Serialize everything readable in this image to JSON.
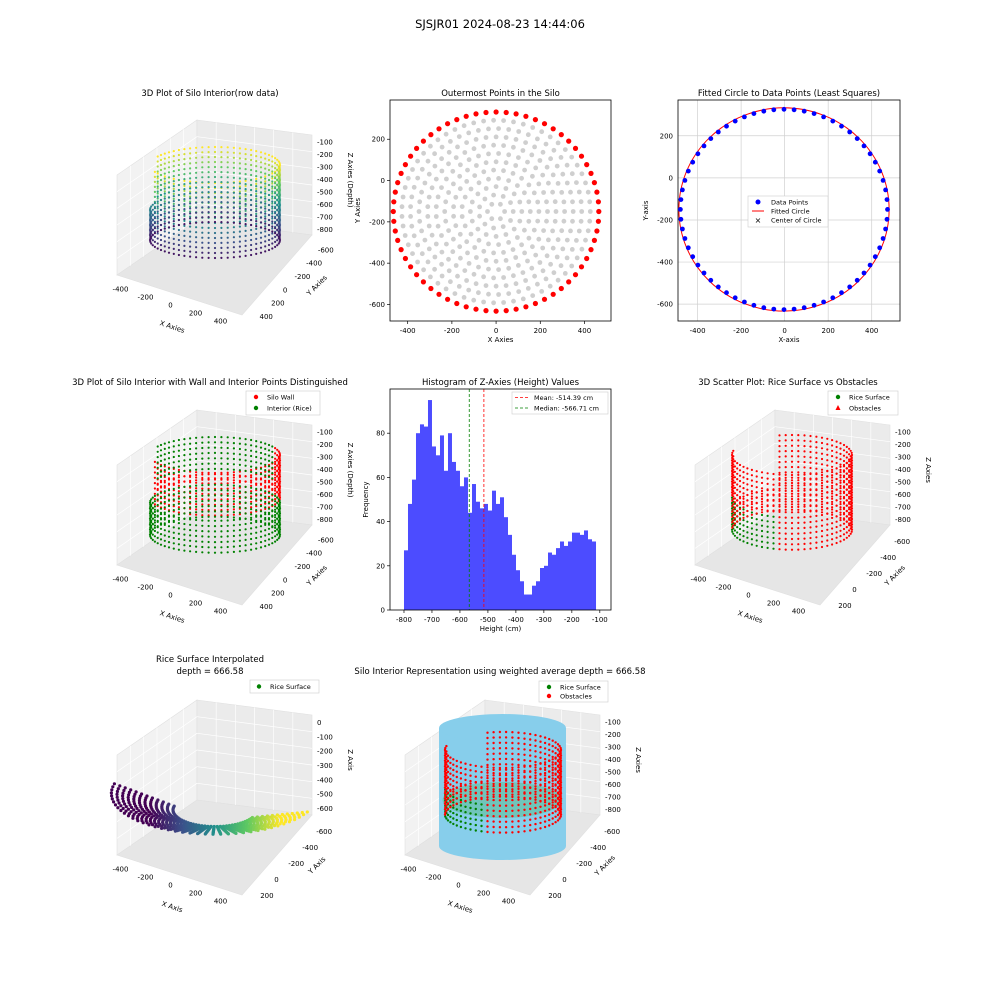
{
  "figure": {
    "suptitle": "SJSJR01 2024-08-23 14:44:06"
  },
  "colors": {
    "wall": "#ff0000",
    "rice": "#008000",
    "points": "#0000ff",
    "grey": "#cfcfcf",
    "hist": "#0000ff",
    "silo": "#87ceeb",
    "mean_line": "#ff0000",
    "median_line": "#008000"
  },
  "chart_data": [
    {
      "id": "p1",
      "type": "scatter3d",
      "title": "3D Plot of Silo Interior(row data)",
      "xlabel": "X Axies",
      "ylabel": "Y Axies",
      "zlabel": "Z Axies (Depth)",
      "x_ticks": [
        "-400",
        "-200",
        "0",
        "200",
        "400"
      ],
      "y_ticks": [
        "400",
        "200",
        "0",
        "-200",
        "-400",
        "-600"
      ],
      "z_ticks": [
        "-100",
        "-200",
        "-300",
        "-400",
        "-500",
        "-600",
        "-700",
        "-800"
      ],
      "colormap": "viridis"
    },
    {
      "id": "p2",
      "type": "scatter",
      "title": "Outermost Points in the Silo",
      "xlabel": "X Axies",
      "ylabel": "Y Axies",
      "xlim": [
        -480,
        520
      ],
      "ylim": [
        -680,
        390
      ],
      "x_ticks": [
        -400,
        -200,
        0,
        200,
        400
      ],
      "y_ticks": [
        200,
        0,
        -200,
        -400,
        -600
      ],
      "center": [
        0,
        -150
      ],
      "radius_x": 465,
      "radius_y": 482,
      "outer_points": 64
    },
    {
      "id": "p3",
      "type": "scatter",
      "title": "Fitted Circle to Data Points (Least Squares)",
      "xlabel": "X-axis",
      "ylabel": "Y-axis",
      "xlim": [
        -490,
        530
      ],
      "ylim": [
        -680,
        370
      ],
      "x_ticks": [
        -400,
        -200,
        0,
        200,
        400
      ],
      "y_ticks": [
        200,
        0,
        -200,
        -400,
        -600
      ],
      "grid": true,
      "circle_center": [
        -3,
        -150
      ],
      "circle_radius": 483,
      "legend": [
        "Data Points",
        "Fitted Circle",
        "Center of Circle"
      ]
    },
    {
      "id": "p4",
      "type": "scatter3d",
      "title": "3D Plot of Silo Interior with Wall and Interior Points Distinguished",
      "xlabel": "X Axies",
      "ylabel": "Y Axies",
      "zlabel": "Z Axies (Depth)",
      "x_ticks": [
        "-400",
        "-200",
        "0",
        "200",
        "400"
      ],
      "y_ticks": [
        "400",
        "200",
        "0",
        "-200",
        "-400",
        "-600"
      ],
      "z_ticks": [
        "-100",
        "-200",
        "-300",
        "-400",
        "-500",
        "-600",
        "-700",
        "-800"
      ],
      "legend": [
        "Silo Wall",
        "Interior (Rice)"
      ]
    },
    {
      "id": "p5",
      "type": "bar",
      "title": "Histogram of Z-Axies (Height) Values",
      "xlabel": "Height (cm)",
      "ylabel": "Frequency",
      "xlim": [
        -850,
        -60
      ],
      "ylim": [
        0,
        100
      ],
      "x_ticks": [
        -800,
        -700,
        -600,
        -500,
        -400,
        -300,
        -200,
        -100
      ],
      "y_ticks": [
        0,
        20,
        40,
        60,
        80
      ],
      "bin_start": -800,
      "bin_width": 14.3,
      "values": [
        27,
        48,
        59,
        80,
        84,
        83,
        95,
        74,
        70,
        79,
        63,
        80,
        67,
        63,
        56,
        60,
        44,
        57,
        49,
        46,
        48,
        45,
        54,
        48,
        51,
        42,
        34,
        25,
        18,
        13,
        7,
        7,
        11,
        13,
        19,
        20,
        26,
        25,
        28,
        31,
        29,
        31,
        35,
        35,
        34,
        36,
        32,
        31
      ],
      "mean": -514.39,
      "median": -566.71,
      "legend": [
        "Mean: -514.39 cm",
        "Median: -566.71 cm"
      ]
    },
    {
      "id": "p6",
      "type": "scatter3d",
      "title": "3D Scatter Plot: Rice Surface vs Obstacles",
      "xlabel": "X Axies",
      "ylabel": "Y Axies",
      "zlabel": "Z Axies",
      "x_ticks": [
        "-400",
        "-200",
        "0",
        "200",
        "400"
      ],
      "y_ticks": [
        "200",
        "0",
        "-200",
        "-400",
        "-600"
      ],
      "z_ticks": [
        "-100",
        "-200",
        "-300",
        "-400",
        "-500",
        "-600",
        "-700",
        "-800"
      ],
      "legend": [
        "Rice Surface",
        "Obstacles"
      ]
    },
    {
      "id": "p7",
      "type": "surface3d",
      "title": "Rice Surface Interpolated",
      "subtitle": "depth = 666.58",
      "xlabel": "X Axis",
      "ylabel": "Y Axis",
      "zlabel": "Z Axis",
      "x_ticks": [
        "-400",
        "-200",
        "0",
        "200",
        "400"
      ],
      "y_ticks": [
        "200",
        "0",
        "-200",
        "-400",
        "-600"
      ],
      "z_ticks": [
        "0",
        "-100",
        "-200",
        "-300",
        "-400",
        "-500",
        "-600"
      ],
      "legend": [
        "Rice Surface"
      ]
    },
    {
      "id": "p8",
      "type": "scatter3d",
      "title": "Silo Interior Representation using weighted average depth = 666.58",
      "xlabel": "X Axies",
      "ylabel": "Y Axies",
      "zlabel": "Z Axies",
      "x_ticks": [
        "-400",
        "-200",
        "0",
        "200",
        "400"
      ],
      "y_ticks": [
        "200",
        "0",
        "-200",
        "-400",
        "-600"
      ],
      "z_ticks": [
        "-100",
        "-200",
        "-300",
        "-400",
        "-500",
        "-600",
        "-700",
        "-800"
      ],
      "legend": [
        "Rice Surface",
        "Obstacles"
      ]
    }
  ]
}
